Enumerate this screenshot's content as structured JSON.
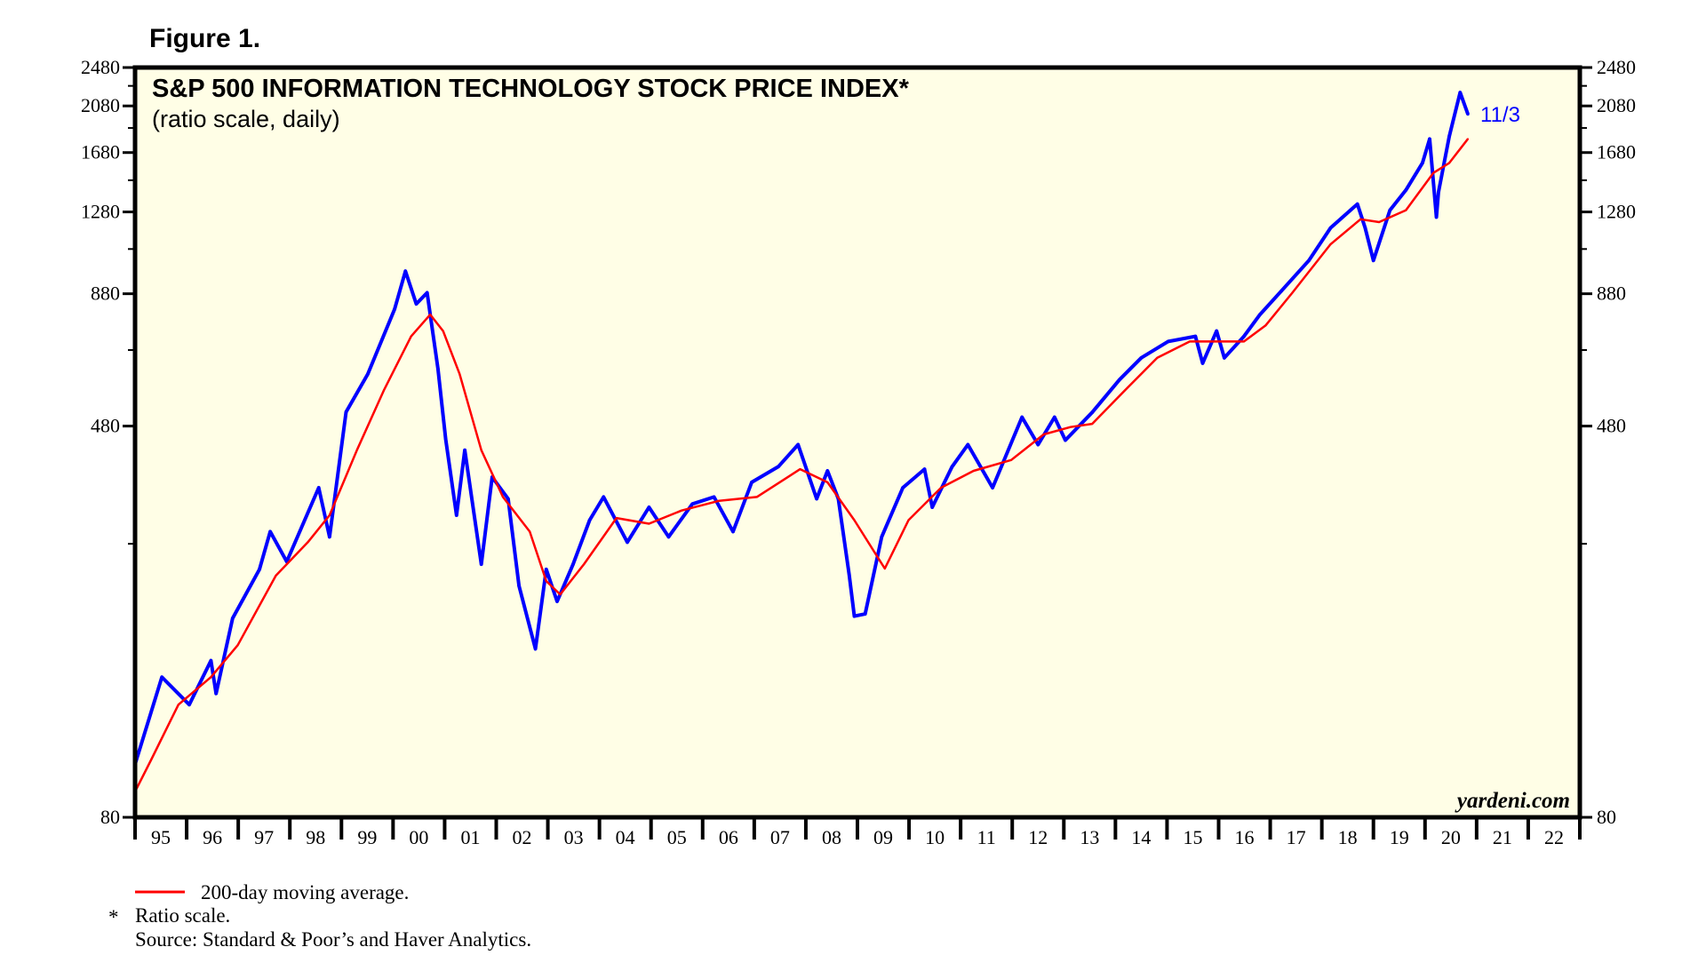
{
  "figure_label": "Figure 1.",
  "chart_data": {
    "type": "line",
    "title": "S&P 500 INFORMATION TECHNOLOGY STOCK PRICE INDEX*",
    "subtitle": "(ratio scale, daily)",
    "y_scale": "log",
    "ylim": [
      80,
      2480
    ],
    "xlim": [
      1995,
      2023
    ],
    "y_ticks": [
      80,
      480,
      880,
      1280,
      1680,
      2080,
      2480
    ],
    "y_minor_ticks": [
      280,
      680,
      1080,
      1480,
      1880,
      2280
    ],
    "x_tick_labels": [
      "95",
      "96",
      "97",
      "98",
      "99",
      "00",
      "01",
      "02",
      "03",
      "04",
      "05",
      "06",
      "07",
      "08",
      "09",
      "10",
      "11",
      "12",
      "13",
      "14",
      "15",
      "16",
      "17",
      "18",
      "19",
      "20",
      "21",
      "22"
    ],
    "grid": false,
    "background_color": "#FFFEE6",
    "end_label": "11/3",
    "watermark": "yardeni.com",
    "series": [
      {
        "key": "price",
        "color": "#0000FF",
        "points": [
          [
            1995.0,
            102
          ],
          [
            1995.52,
            152
          ],
          [
            1996.05,
            134
          ],
          [
            1996.47,
            164
          ],
          [
            1996.57,
            141
          ],
          [
            1996.89,
            199
          ],
          [
            1997.41,
            249
          ],
          [
            1997.62,
            296
          ],
          [
            1997.94,
            258
          ],
          [
            1998.56,
            362
          ],
          [
            1998.77,
            289
          ],
          [
            1999.09,
            512
          ],
          [
            1999.51,
            609
          ],
          [
            2000.03,
            820
          ],
          [
            2000.24,
            976
          ],
          [
            2000.45,
            840
          ],
          [
            2000.66,
            884
          ],
          [
            2000.87,
            624
          ],
          [
            2001.02,
            452
          ],
          [
            2001.23,
            319
          ],
          [
            2001.39,
            430
          ],
          [
            2001.71,
            255
          ],
          [
            2001.92,
            380
          ],
          [
            2002.23,
            344
          ],
          [
            2002.44,
            231
          ],
          [
            2002.76,
            173
          ],
          [
            2002.97,
            249
          ],
          [
            2003.18,
            215
          ],
          [
            2003.49,
            255
          ],
          [
            2003.81,
            312
          ],
          [
            2004.08,
            347
          ],
          [
            2004.54,
            282
          ],
          [
            2004.96,
            331
          ],
          [
            2005.34,
            289
          ],
          [
            2005.8,
            336
          ],
          [
            2006.22,
            347
          ],
          [
            2006.59,
            296
          ],
          [
            2006.95,
            371
          ],
          [
            2007.47,
            399
          ],
          [
            2007.85,
            441
          ],
          [
            2008.21,
            344
          ],
          [
            2008.42,
            391
          ],
          [
            2008.63,
            344
          ],
          [
            2008.84,
            243
          ],
          [
            2008.94,
            201
          ],
          [
            2009.15,
            203
          ],
          [
            2009.47,
            289
          ],
          [
            2009.88,
            362
          ],
          [
            2010.3,
            394
          ],
          [
            2010.45,
            331
          ],
          [
            2010.83,
            398
          ],
          [
            2011.14,
            441
          ],
          [
            2011.62,
            362
          ],
          [
            2012.19,
            500
          ],
          [
            2012.5,
            441
          ],
          [
            2012.82,
            500
          ],
          [
            2013.03,
            450
          ],
          [
            2013.55,
            511
          ],
          [
            2014.08,
            594
          ],
          [
            2014.5,
            656
          ],
          [
            2015.02,
            707
          ],
          [
            2015.55,
            724
          ],
          [
            2015.69,
            640
          ],
          [
            2015.96,
            742
          ],
          [
            2016.11,
            656
          ],
          [
            2016.49,
            724
          ],
          [
            2016.8,
            800
          ],
          [
            2017.22,
            892
          ],
          [
            2017.75,
            1025
          ],
          [
            2018.17,
            1190
          ],
          [
            2018.69,
            1327
          ],
          [
            2018.84,
            1190
          ],
          [
            2019.0,
            1025
          ],
          [
            2019.32,
            1290
          ],
          [
            2019.63,
            1415
          ],
          [
            2019.95,
            1602
          ],
          [
            2020.09,
            1788
          ],
          [
            2020.22,
            1250
          ],
          [
            2020.26,
            1400
          ],
          [
            2020.47,
            1810
          ],
          [
            2020.68,
            2212
          ],
          [
            2020.83,
            2004
          ]
        ]
      },
      {
        "key": "ma200",
        "name": "200-day moving average.",
        "color": "#FF0000",
        "points": [
          [
            1995.0,
            90
          ],
          [
            1995.31,
            104
          ],
          [
            1995.84,
            134
          ],
          [
            1996.47,
            152
          ],
          [
            1996.99,
            176
          ],
          [
            1997.73,
            242
          ],
          [
            1998.35,
            282
          ],
          [
            1998.77,
            319
          ],
          [
            1999.3,
            430
          ],
          [
            1999.82,
            565
          ],
          [
            2000.35,
            724
          ],
          [
            2000.72,
            800
          ],
          [
            2000.97,
            742
          ],
          [
            2001.29,
            609
          ],
          [
            2001.71,
            430
          ],
          [
            2002.13,
            347
          ],
          [
            2002.65,
            296
          ],
          [
            2002.97,
            236
          ],
          [
            2003.24,
            222
          ],
          [
            2003.7,
            255
          ],
          [
            2004.33,
            315
          ],
          [
            2004.96,
            307
          ],
          [
            2005.59,
            326
          ],
          [
            2006.32,
            341
          ],
          [
            2007.05,
            347
          ],
          [
            2007.89,
            394
          ],
          [
            2008.42,
            371
          ],
          [
            2008.94,
            312
          ],
          [
            2009.53,
            250
          ],
          [
            2009.99,
            312
          ],
          [
            2010.62,
            362
          ],
          [
            2011.25,
            391
          ],
          [
            2011.98,
            411
          ],
          [
            2012.61,
            462
          ],
          [
            2013.13,
            478
          ],
          [
            2013.55,
            485
          ],
          [
            2014.18,
            565
          ],
          [
            2014.81,
            656
          ],
          [
            2015.44,
            707
          ],
          [
            2015.96,
            707
          ],
          [
            2016.49,
            707
          ],
          [
            2016.91,
            761
          ],
          [
            2017.43,
            884
          ],
          [
            2018.17,
            1104
          ],
          [
            2018.75,
            1238
          ],
          [
            2019.11,
            1222
          ],
          [
            2019.63,
            1290
          ],
          [
            2020.16,
            1530
          ],
          [
            2020.47,
            1602
          ],
          [
            2020.83,
            1788
          ]
        ]
      }
    ]
  },
  "footer": {
    "legend_label": "200-day moving average.",
    "asterisk": "*",
    "note": "Ratio scale.",
    "source": "Source: Standard & Poor’s and Haver Analytics."
  }
}
